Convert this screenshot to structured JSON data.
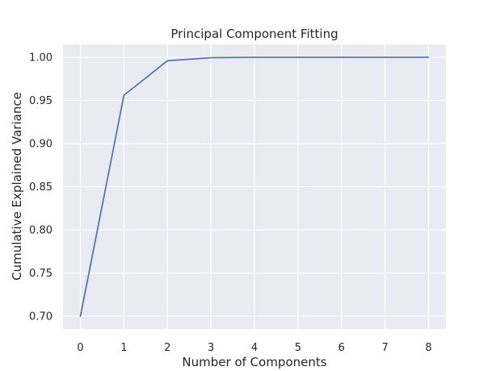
{
  "chart_data": {
    "type": "line",
    "title": "Principal Component Fitting",
    "xlabel": "Number of Components",
    "ylabel": "Cumulative Explained Variance",
    "x": [
      0,
      1,
      2,
      3,
      4,
      5,
      6,
      7,
      8
    ],
    "series": [
      {
        "values": [
          0.7,
          0.956,
          0.996,
          0.9995,
          1.0,
          1.0,
          1.0,
          1.0,
          1.0
        ],
        "color": "#4c72b0"
      }
    ],
    "xticks": [
      "0",
      "1",
      "2",
      "3",
      "4",
      "5",
      "6",
      "7",
      "8"
    ],
    "yticks": [
      "0.70",
      "0.75",
      "0.80",
      "0.85",
      "0.90",
      "0.95",
      "1.00"
    ],
    "xlim": [
      -0.4,
      8.4
    ],
    "ylim": [
      0.685,
      1.015
    ],
    "grid": true,
    "background": "#eaeaf2",
    "grid_color": "#ffffff",
    "legend": "none"
  }
}
